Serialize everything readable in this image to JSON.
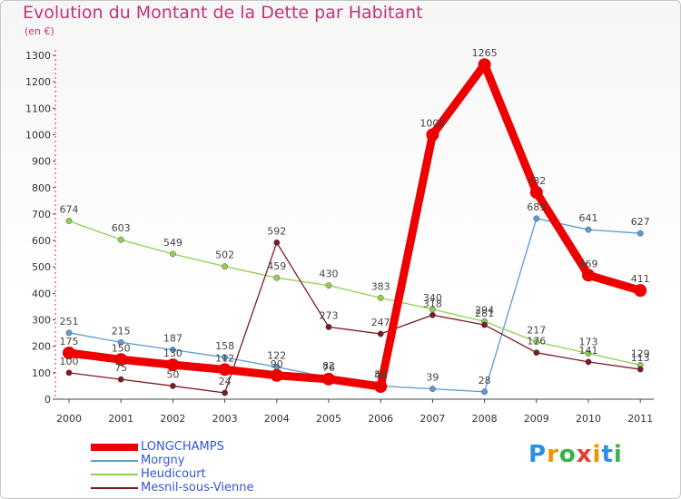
{
  "title": "Evolution du Montant de la Dette par Habitant",
  "subtitle": "(en €)",
  "logo_text": "Proxiti",
  "chart_data": {
    "type": "line",
    "title": "Evolution du Montant de la Dette par Habitant",
    "ylabel": "(en €)",
    "xlabel": "",
    "ylim": [
      0,
      1300
    ],
    "yticks": [
      0,
      100,
      200,
      300,
      400,
      500,
      600,
      700,
      800,
      900,
      1000,
      1100,
      1200,
      1300
    ],
    "categories": [
      "2000",
      "2001",
      "2002",
      "2003",
      "2004",
      "2005",
      "2006",
      "2007",
      "2008",
      "2009",
      "2010",
      "2011"
    ],
    "grid": false,
    "legend_position": "bottom-left",
    "series": [
      {
        "name": "LONGCHAMPS",
        "color": "#ee0000",
        "values": [
          175,
          150,
          130,
          112,
          90,
          76,
          48,
          1000,
          1265,
          782,
          469,
          411
        ],
        "labels": [
          "175",
          "150",
          "130",
          "112",
          "90",
          "76",
          "48",
          "1000",
          "1265",
          "782",
          "469",
          "411"
        ]
      },
      {
        "name": "Morgny",
        "color": "#5b9bd5",
        "values": [
          251,
          215,
          187,
          158,
          122,
          82,
          50,
          39,
          28,
          683,
          641,
          627
        ],
        "labels": [
          "251",
          "215",
          "187",
          "158",
          "122",
          "82",
          "50",
          "39",
          "28",
          "683",
          "641",
          "627"
        ]
      },
      {
        "name": "Heudicourt",
        "color": "#8fd14f",
        "values": [
          674,
          603,
          549,
          502,
          459,
          430,
          383,
          340,
          294,
          217,
          173,
          129
        ],
        "labels": [
          "674",
          "603",
          "549",
          "502",
          "459",
          "430",
          "383",
          "340",
          "294",
          "217",
          "173",
          "129"
        ]
      },
      {
        "name": "Mesnil-sous-Vienne",
        "color": "#7a1a22",
        "values": [
          100,
          75,
          50,
          24,
          592,
          273,
          247,
          318,
          281,
          176,
          141,
          113
        ],
        "labels": [
          "100",
          "75",
          "50",
          "24",
          "592",
          "273",
          "247",
          "318",
          "281",
          "176",
          "141",
          "113"
        ]
      }
    ]
  },
  "legend": [
    {
      "label": "LONGCHAMPS",
      "color": "#ee0000"
    },
    {
      "label": "Morgny",
      "color": "#5b9bd5"
    },
    {
      "label": "Heudicourt",
      "color": "#8fd14f"
    },
    {
      "label": "Mesnil-sous-Vienne",
      "color": "#7a1a22"
    }
  ]
}
